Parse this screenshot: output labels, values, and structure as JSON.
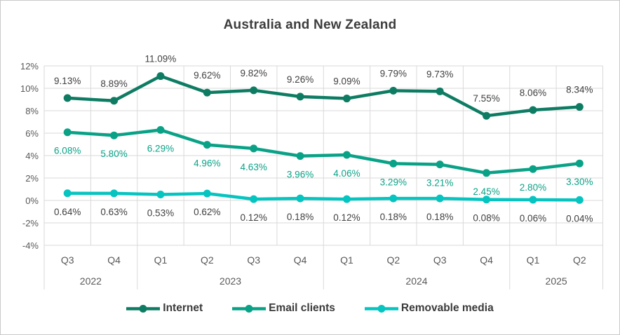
{
  "chart_data": {
    "type": "line",
    "title": "Australia and New Zealand",
    "x_quarter_labels": [
      "Q3",
      "Q4",
      "Q1",
      "Q2",
      "Q3",
      "Q4",
      "Q1",
      "Q2",
      "Q3",
      "Q4",
      "Q1",
      "Q2"
    ],
    "x_year_groups": [
      {
        "label": "2022",
        "span": 2
      },
      {
        "label": "2023",
        "span": 4
      },
      {
        "label": "2024",
        "span": 4
      },
      {
        "label": "2025",
        "span": 2
      }
    ],
    "y_axis": {
      "tick_labels": [
        "12%",
        "10%",
        "8%",
        "6%",
        "4%",
        "2%",
        "0%",
        "-2%",
        "-4%"
      ],
      "max": 12,
      "min": -4,
      "step": 2,
      "unit": "%"
    },
    "grid": true,
    "legend_position": "bottom",
    "series": [
      {
        "name": "Internet",
        "color": "#0e7c63",
        "label_color": "#404040",
        "label_position": "above",
        "values": [
          9.13,
          8.89,
          11.09,
          9.62,
          9.82,
          9.26,
          9.09,
          9.79,
          9.73,
          7.55,
          8.06,
          8.34
        ],
        "labels": [
          "9.13%",
          "8.89%",
          "11.09%",
          "9.62%",
          "9.82%",
          "9.26%",
          "9.09%",
          "9.79%",
          "9.73%",
          "7.55%",
          "8.06%",
          "8.34%"
        ]
      },
      {
        "name": "Email clients",
        "color": "#0aa287",
        "label_color": "#0aa287",
        "label_position": "below",
        "values": [
          6.08,
          5.8,
          6.29,
          4.96,
          4.63,
          3.96,
          4.06,
          3.29,
          3.21,
          2.45,
          2.8,
          3.3
        ],
        "labels": [
          "6.08%",
          "5.80%",
          "6.29%",
          "4.96%",
          "4.63%",
          "3.96%",
          "4.06%",
          "3.29%",
          "3.21%",
          "2.45%",
          "2.80%",
          "3.30%"
        ]
      },
      {
        "name": "Removable media",
        "color": "#06c4c0",
        "label_color": "#404040",
        "label_position": "below",
        "values": [
          0.64,
          0.63,
          0.53,
          0.62,
          0.12,
          0.18,
          0.12,
          0.18,
          0.18,
          0.08,
          0.06,
          0.04
        ],
        "labels": [
          "0.64%",
          "0.63%",
          "0.53%",
          "0.62%",
          "0.12%",
          "0.18%",
          "0.12%",
          "0.18%",
          "0.18%",
          "0.08%",
          "0.06%",
          "0.04%"
        ]
      }
    ],
    "colors": {
      "grid": "#d9d9d9",
      "axis_text": "#595959",
      "data_label_dark": "#404040",
      "title_text": "#3d3d3d",
      "legend_text": "#3b3b3b",
      "frame_border": "#c9c9c9",
      "background": "#ffffff"
    }
  }
}
